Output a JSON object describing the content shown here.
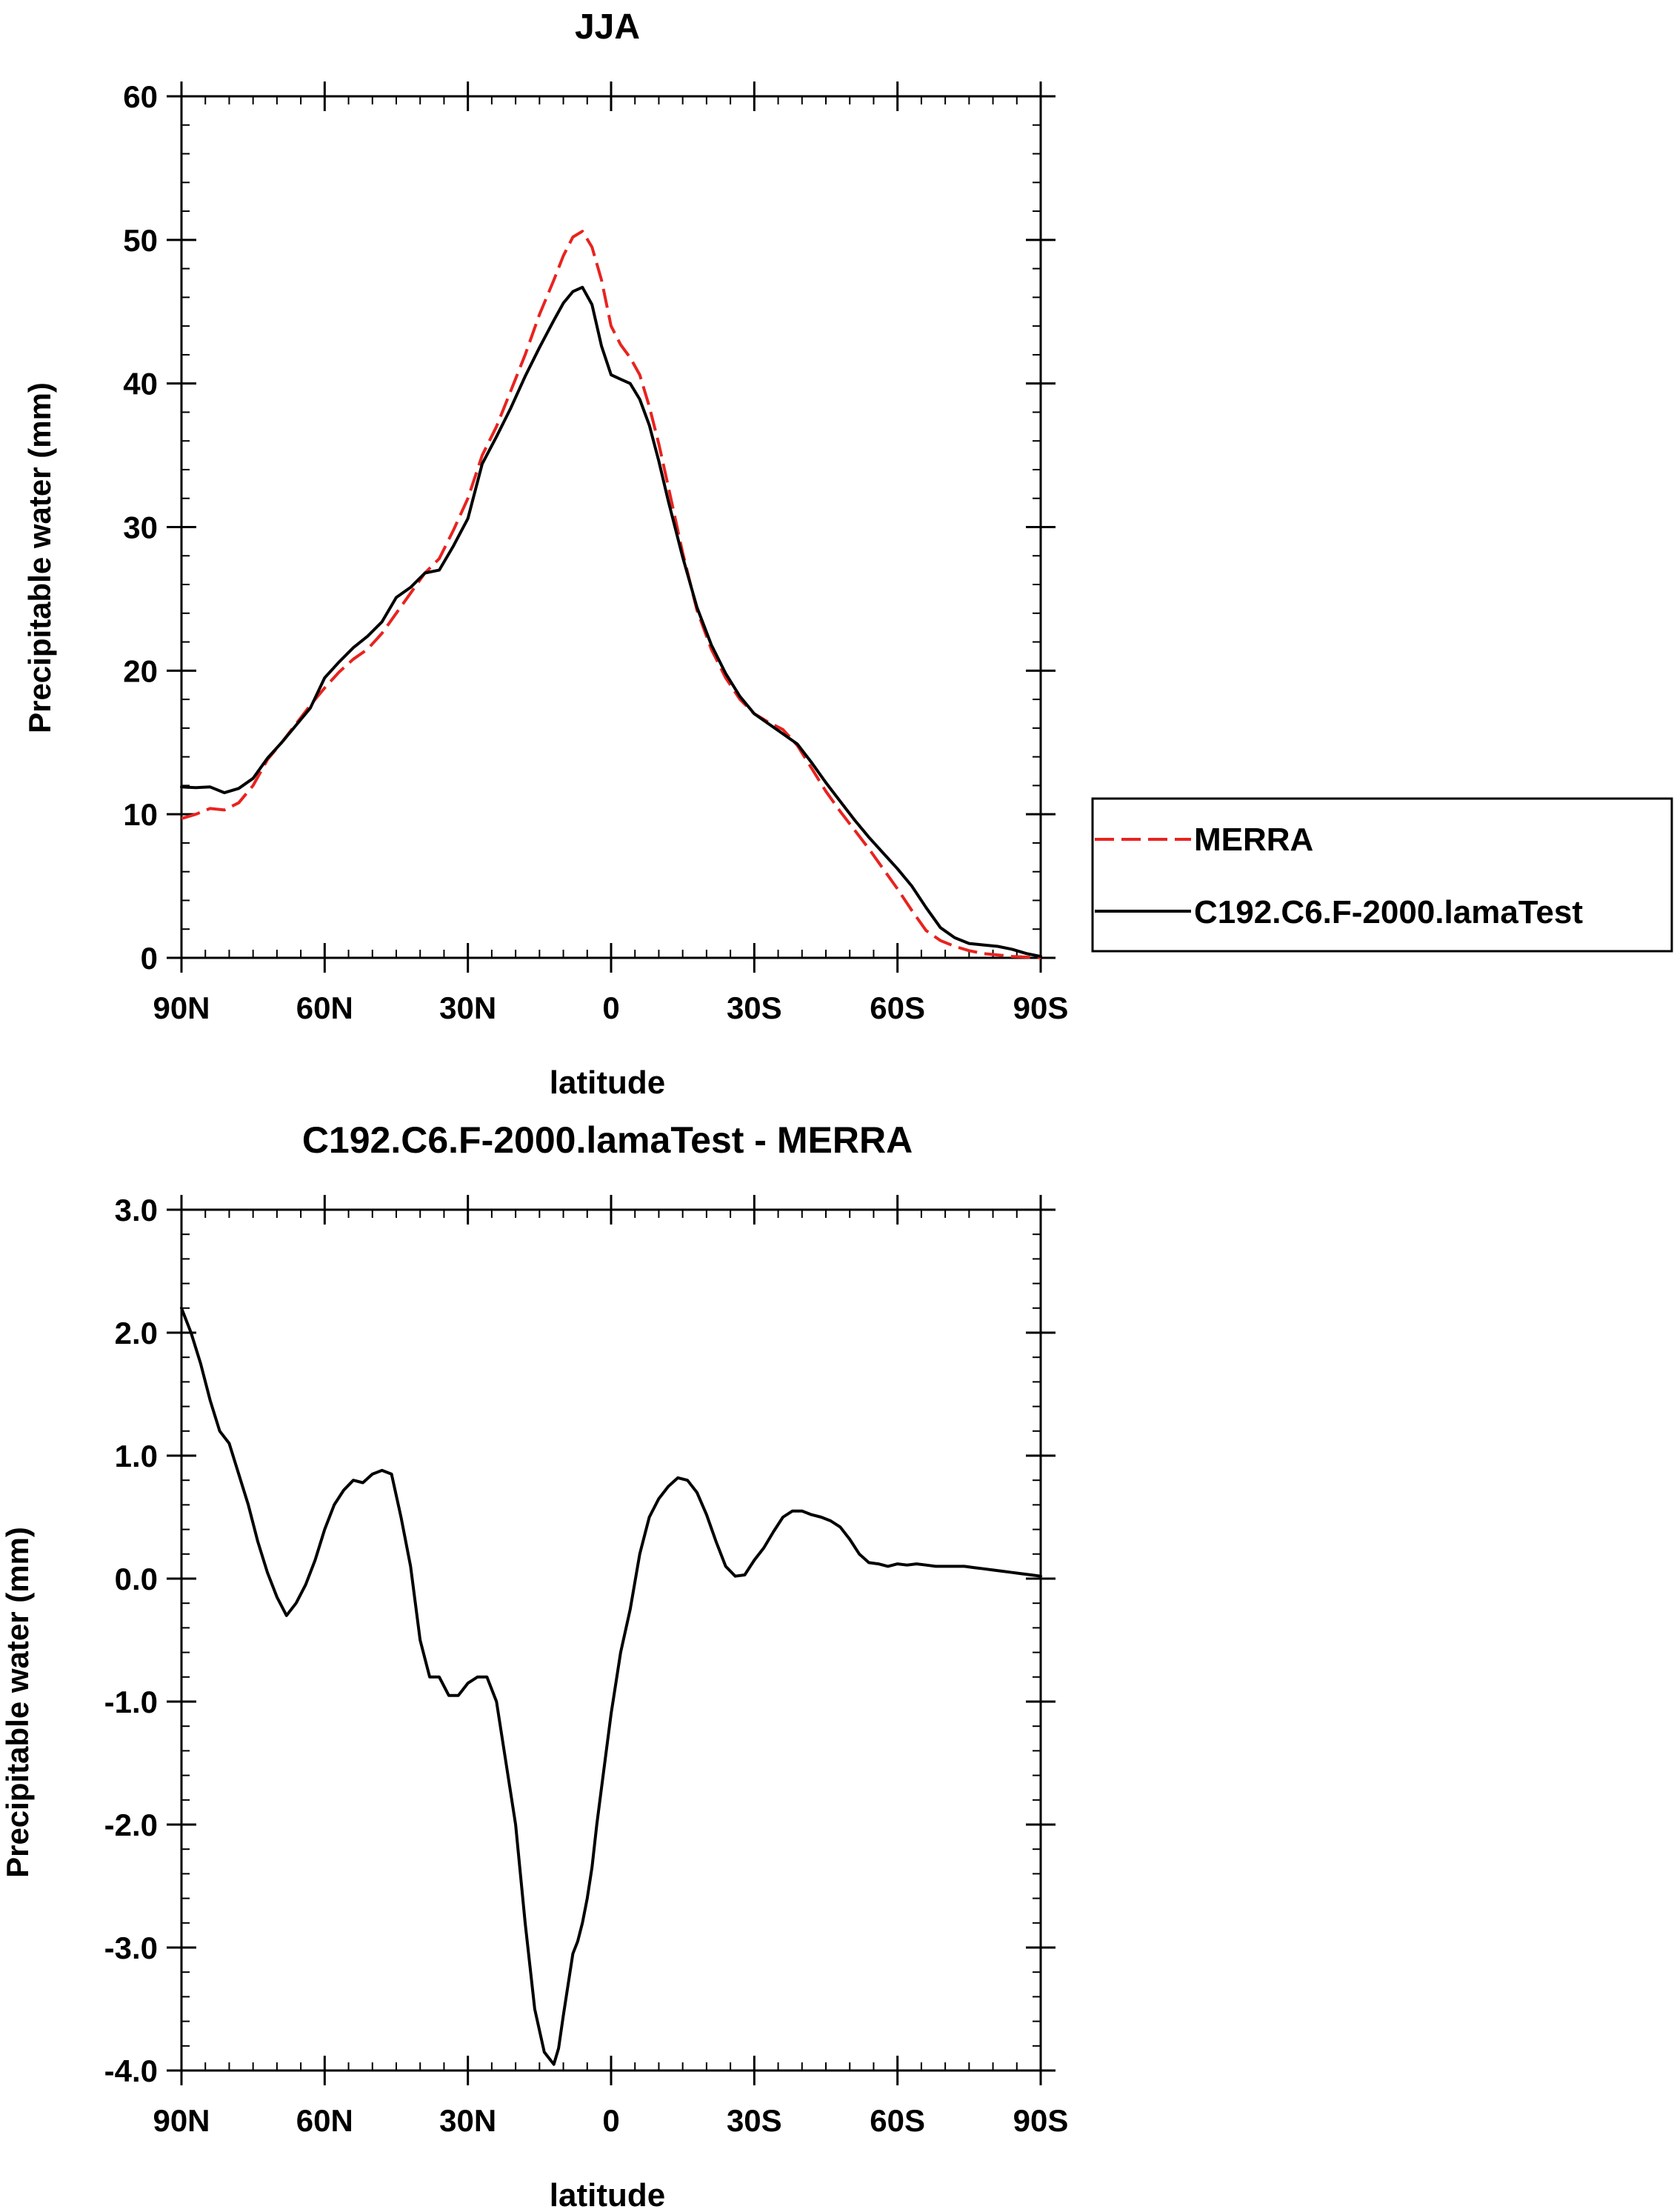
{
  "chart_data": [
    {
      "type": "line",
      "title": "JJA",
      "xlabel": "latitude",
      "ylabel": "Precipitable water (mm)",
      "xlim": [
        90,
        -90
      ],
      "ylim": [
        0,
        60
      ],
      "x_ticks": [
        90,
        60,
        30,
        0,
        -30,
        -60,
        -90
      ],
      "x_tick_labels": [
        "90N",
        "60N",
        "30N",
        "0",
        "30S",
        "60S",
        "90S"
      ],
      "y_ticks": [
        0,
        10,
        20,
        30,
        40,
        50,
        60
      ],
      "y_tick_labels": [
        "0",
        "10",
        "20",
        "30",
        "40",
        "50",
        "60"
      ],
      "y_minor_step": 2,
      "x_minor_step": 5,
      "legend": {
        "placement": "right-outside",
        "entries": [
          "MERRA",
          "C192.C6.F-2000.lamaTest"
        ]
      },
      "series": [
        {
          "name": "MERRA",
          "color": "#e8231f",
          "dash": "dashed",
          "x": [
            90,
            87,
            84,
            81,
            78,
            75,
            72,
            69,
            66,
            63,
            60,
            57,
            54,
            51,
            48,
            45,
            42,
            39,
            36,
            33,
            30,
            27,
            24,
            21,
            18,
            15,
            12,
            10,
            8,
            6,
            4,
            2,
            0,
            -2,
            -4,
            -6,
            -8,
            -10,
            -12,
            -15,
            -18,
            -21,
            -24,
            -27,
            -30,
            -33,
            -36,
            -39,
            -42,
            -45,
            -48,
            -51,
            -54,
            -57,
            -60,
            -63,
            -66,
            -69,
            -72,
            -75,
            -78,
            -81,
            -84,
            -87,
            -90
          ],
          "values": [
            9.7,
            10.0,
            10.4,
            10.3,
            10.8,
            12.0,
            13.8,
            15.0,
            16.3,
            17.6,
            18.8,
            19.9,
            20.8,
            21.5,
            22.6,
            24.0,
            25.4,
            26.8,
            27.8,
            29.8,
            32.0,
            35.0,
            37.0,
            39.5,
            42.0,
            44.8,
            47.2,
            48.9,
            50.2,
            50.6,
            49.5,
            47.2,
            44.0,
            42.7,
            41.8,
            40.6,
            38.4,
            35.8,
            32.8,
            28.2,
            24.2,
            21.5,
            19.5,
            18.0,
            17.0,
            16.4,
            15.9,
            14.8,
            13.2,
            11.6,
            10.2,
            8.9,
            7.6,
            6.2,
            4.8,
            3.3,
            1.9,
            1.2,
            0.8,
            0.5,
            0.3,
            0.2,
            0.1,
            0.05,
            0.0
          ]
        },
        {
          "name": "C192.C6.F-2000.lamaTest",
          "color": "#000000",
          "dash": "solid",
          "x": [
            90,
            87,
            84,
            81,
            78,
            75,
            72,
            69,
            66,
            63,
            60,
            57,
            54,
            51,
            48,
            45,
            42,
            39,
            36,
            33,
            30,
            27,
            24,
            21,
            18,
            15,
            12,
            10,
            8,
            6,
            4,
            2,
            0,
            -2,
            -4,
            -6,
            -8,
            -10,
            -12,
            -15,
            -18,
            -21,
            -24,
            -27,
            -30,
            -33,
            -36,
            -39,
            -42,
            -45,
            -48,
            -51,
            -54,
            -57,
            -60,
            -63,
            -66,
            -69,
            -72,
            -75,
            -78,
            -81,
            -84,
            -87,
            -90
          ],
          "values": [
            11.9,
            11.85,
            11.9,
            11.5,
            11.8,
            12.5,
            13.9,
            15.0,
            16.2,
            17.4,
            19.5,
            20.6,
            21.6,
            22.4,
            23.4,
            25.1,
            25.8,
            26.8,
            27.0,
            28.7,
            30.6,
            34.4,
            36.3,
            38.3,
            40.5,
            42.5,
            44.4,
            45.6,
            46.4,
            46.7,
            45.5,
            42.6,
            40.6,
            40.3,
            40.0,
            38.9,
            37.1,
            34.6,
            31.8,
            27.9,
            24.4,
            21.8,
            19.8,
            18.2,
            17.0,
            16.3,
            15.6,
            14.9,
            13.6,
            12.2,
            10.9,
            9.6,
            8.4,
            7.3,
            6.2,
            5.0,
            3.5,
            2.1,
            1.4,
            1.0,
            0.9,
            0.8,
            0.6,
            0.3,
            0.1
          ]
        }
      ]
    },
    {
      "type": "line",
      "title": "C192.C6.F-2000.lamaTest - MERRA",
      "xlabel": "latitude",
      "ylabel": "Precipitable water (mm)",
      "xlim": [
        90,
        -90
      ],
      "ylim": [
        -4,
        3
      ],
      "x_ticks": [
        90,
        60,
        30,
        0,
        -30,
        -60,
        -90
      ],
      "x_tick_labels": [
        "90N",
        "60N",
        "30N",
        "0",
        "30S",
        "60S",
        "90S"
      ],
      "y_ticks": [
        -4,
        -3,
        -2,
        -1,
        0,
        1,
        2,
        3
      ],
      "y_tick_labels": [
        "-4.0",
        "-3.0",
        "-2.0",
        "-1.0",
        "0.0",
        "1.0",
        "2.0",
        "3.0"
      ],
      "y_minor_step": 0.2,
      "x_minor_step": 5,
      "series": [
        {
          "name": "C192.C6.F-2000.lamaTest - MERRA",
          "color": "#000000",
          "dash": "solid",
          "x": [
            90,
            88,
            86,
            84,
            82,
            80,
            78,
            76,
            74,
            72,
            70,
            68,
            66,
            64,
            62,
            60,
            58,
            56,
            54,
            52,
            50,
            48,
            46,
            44,
            42,
            40,
            38,
            36,
            34,
            32,
            30,
            28,
            26,
            24,
            22,
            20,
            18,
            16,
            14,
            12,
            11,
            10,
            9,
            8,
            7,
            6,
            5,
            4,
            3,
            2,
            0,
            -2,
            -4,
            -6,
            -8,
            -10,
            -12,
            -14,
            -16,
            -18,
            -20,
            -22,
            -24,
            -26,
            -28,
            -30,
            -32,
            -34,
            -36,
            -38,
            -40,
            -42,
            -44,
            -46,
            -48,
            -50,
            -52,
            -54,
            -56,
            -58,
            -60,
            -62,
            -64,
            -66,
            -68,
            -70,
            -72,
            -74,
            -76,
            -78,
            -80,
            -82,
            -84,
            -86,
            -88,
            -90
          ],
          "values": [
            2.2,
            2.0,
            1.75,
            1.45,
            1.2,
            1.1,
            0.85,
            0.6,
            0.3,
            0.05,
            -0.15,
            -0.3,
            -0.2,
            -0.05,
            0.15,
            0.4,
            0.6,
            0.72,
            0.8,
            0.78,
            0.85,
            0.88,
            0.85,
            0.5,
            0.1,
            -0.5,
            -0.8,
            -0.8,
            -0.95,
            -0.95,
            -0.85,
            -0.8,
            -0.8,
            -1.0,
            -1.5,
            -2.0,
            -2.8,
            -3.5,
            -3.85,
            -3.95,
            -3.82,
            -3.55,
            -3.3,
            -3.05,
            -2.95,
            -2.8,
            -2.6,
            -2.35,
            -2.0,
            -1.7,
            -1.1,
            -0.6,
            -0.25,
            0.2,
            0.5,
            0.65,
            0.75,
            0.82,
            0.8,
            0.7,
            0.52,
            0.3,
            0.1,
            0.02,
            0.03,
            0.15,
            0.25,
            0.38,
            0.5,
            0.55,
            0.55,
            0.52,
            0.5,
            0.47,
            0.42,
            0.32,
            0.2,
            0.13,
            0.12,
            0.1,
            0.12,
            0.11,
            0.12,
            0.11,
            0.1,
            0.1,
            0.1,
            0.1,
            0.09,
            0.08,
            0.07,
            0.06,
            0.05,
            0.04,
            0.03,
            0.02
          ]
        }
      ]
    }
  ],
  "ui": {
    "colors": {
      "merra": "#e8231f",
      "model": "#000000",
      "axis": "#000000",
      "background": "#ffffff"
    }
  }
}
